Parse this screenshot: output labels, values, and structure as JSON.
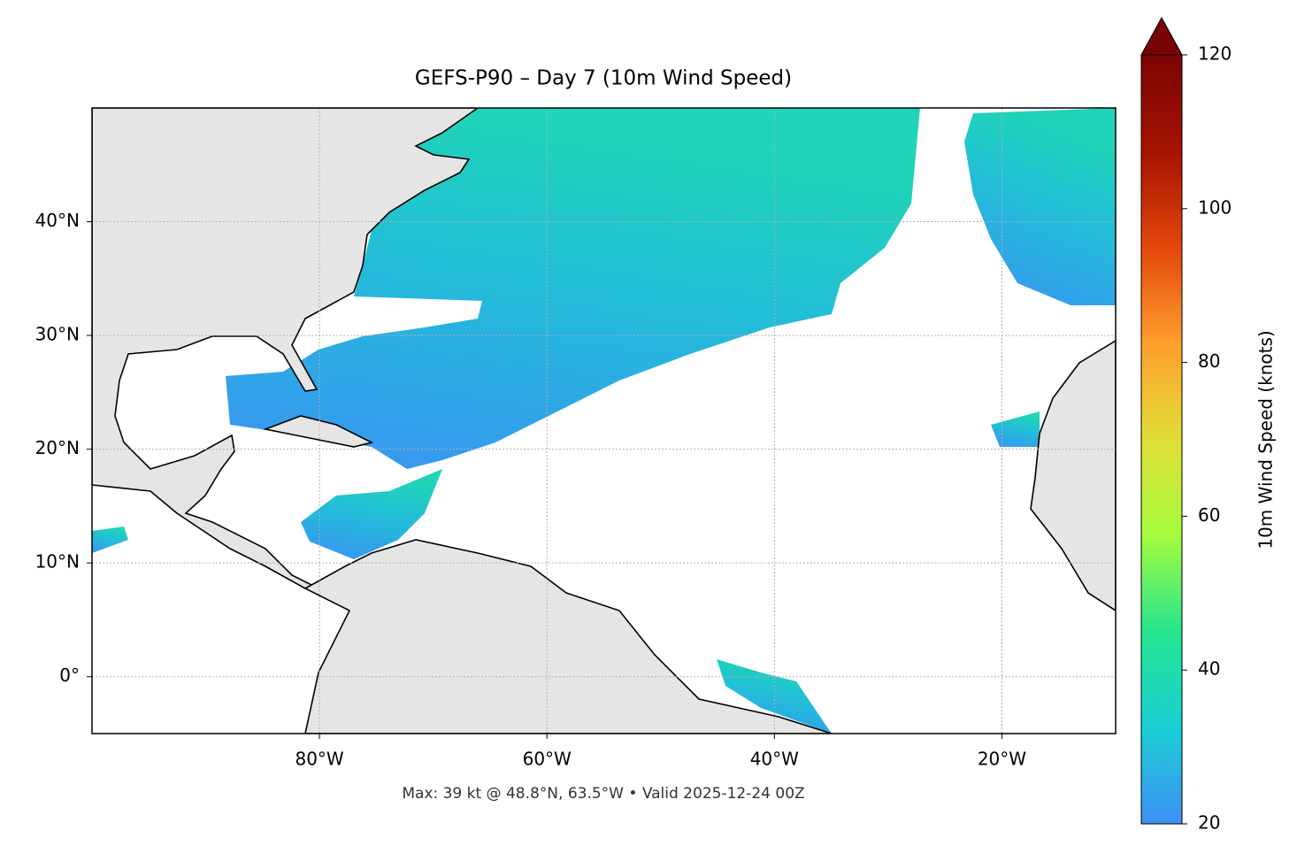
{
  "chart_data": {
    "type": "map",
    "title": "GEFS-P90 – Day 7 (10m Wind Speed)",
    "footnote": "Max: 39 kt @ 48.8°N, 63.5°W • Valid 2025-12-24 00Z",
    "xlim": [
      -100,
      -10
    ],
    "ylim": [
      -5,
      50
    ],
    "xticks": [
      {
        "value": -80,
        "label": "80°W"
      },
      {
        "value": -60,
        "label": "60°W"
      },
      {
        "value": -40,
        "label": "40°W"
      },
      {
        "value": -20,
        "label": "20°W"
      }
    ],
    "yticks": [
      {
        "value": 0,
        "label": "0°"
      },
      {
        "value": 10,
        "label": "10°N"
      },
      {
        "value": 20,
        "label": "20°N"
      },
      {
        "value": 30,
        "label": "30°N"
      },
      {
        "value": 40,
        "label": "40°N"
      }
    ],
    "grid": true,
    "colorbar": {
      "label": "10m Wind Speed (knots)",
      "lim": [
        20,
        120
      ],
      "ticks": [
        20,
        40,
        60,
        80,
        100,
        120
      ],
      "colors": [
        "#3d8ff5",
        "#1bcfd5",
        "#25e58f",
        "#a4fc3c",
        "#e1dd37",
        "#fe9f2d",
        "#e4460b",
        "#a51301",
        "#7a0403"
      ]
    }
  }
}
